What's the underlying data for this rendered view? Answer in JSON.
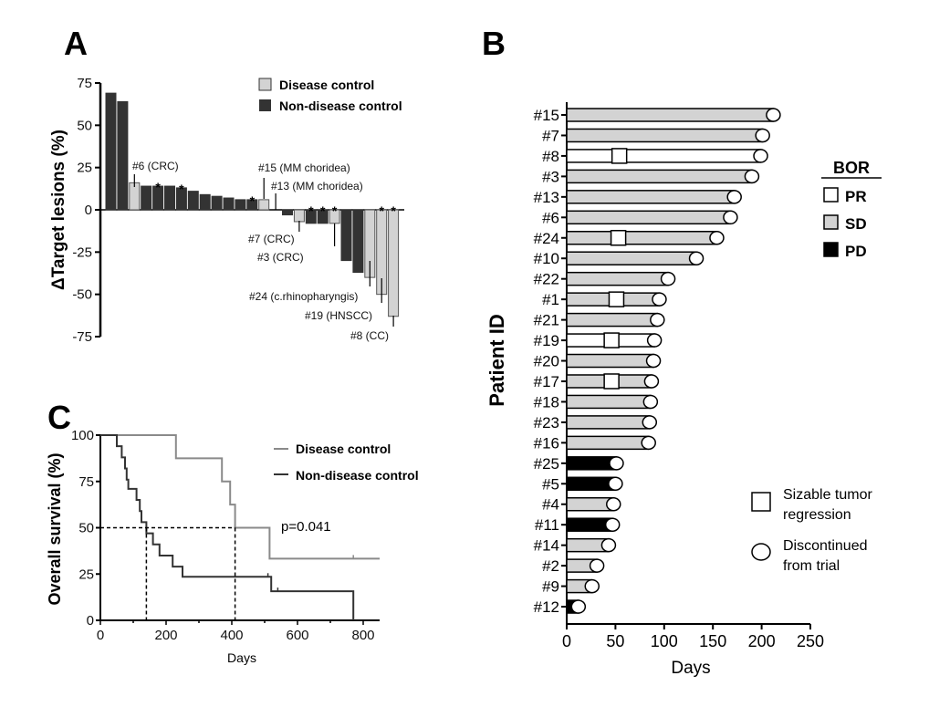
{
  "panel_labels": {
    "a": "A",
    "b": "B",
    "c": "C"
  },
  "colors": {
    "disease_control": "#d3d3d3",
    "non_disease_control": "#333333",
    "pr": "#ffffff",
    "sd": "#d3d3d3",
    "pd": "#000000",
    "km_disease_control": "#8a8a8a",
    "km_non_disease_control": "#333333"
  },
  "chart_data": [
    {
      "type": "bar",
      "panel": "A",
      "ylabel": "ΔTarget lesions (%)",
      "ylim": [
        -75,
        75
      ],
      "yticks": [
        "75",
        "50",
        "25",
        "0",
        "-25",
        "-50",
        "-75"
      ],
      "legend": [
        "Disease control",
        "Non-disease control"
      ],
      "values": [
        69,
        64,
        16,
        14,
        14,
        14,
        13,
        11,
        9,
        8,
        7,
        6,
        6,
        6,
        0,
        -3,
        -7,
        -8,
        -8,
        -8,
        -30,
        -37,
        -40,
        -50,
        -63
      ],
      "groups": [
        "N",
        "N",
        "D",
        "N",
        "N",
        "N",
        "N",
        "N",
        "N",
        "N",
        "N",
        "N",
        "N",
        "D",
        "D",
        "N",
        "D",
        "N",
        "N",
        "D",
        "N",
        "N",
        "D",
        "D",
        "D"
      ],
      "asterisk_bars": [
        4,
        6,
        12,
        17,
        18,
        19,
        23,
        24
      ],
      "asterisk": "*",
      "annotations": [
        {
          "bar": 2,
          "text": "#6 (CRC)"
        },
        {
          "bar": 13,
          "text": "#15 (MM choridea)"
        },
        {
          "bar": 14,
          "text": "#13 (MM choridea)"
        },
        {
          "bar": 16,
          "text": "#7 (CRC)"
        },
        {
          "bar": 19,
          "text": "#3 (CRC)"
        },
        {
          "bar": 22,
          "text": "#24 (c.rhinopharyngis)"
        },
        {
          "bar": 23,
          "text": "#19 (HNSCC)"
        },
        {
          "bar": 24,
          "text": "#8 (CC)"
        }
      ]
    },
    {
      "type": "bar",
      "orientation": "horizontal",
      "panel": "B",
      "xlabel": "Days",
      "ylabel": "Patient ID",
      "xlim": [
        0,
        250
      ],
      "xticks": [
        "0",
        "50",
        "100",
        "150",
        "200",
        "250"
      ],
      "legend_title": "BOR",
      "legend": [
        "PR",
        "SD",
        "PD"
      ],
      "marker_legend": [
        {
          "symbol": "square",
          "lines": [
            "Sizable tumor",
            "regression"
          ]
        },
        {
          "symbol": "circle",
          "lines": [
            "Discontinued",
            "from trial"
          ]
        }
      ],
      "patients": [
        {
          "id": "#15",
          "days": 212,
          "bor": "SD"
        },
        {
          "id": "#7",
          "days": 201,
          "bor": "SD"
        },
        {
          "id": "#8",
          "days": 199,
          "bor": "PR",
          "regression": 54
        },
        {
          "id": "#3",
          "days": 190,
          "bor": "SD"
        },
        {
          "id": "#13",
          "days": 172,
          "bor": "SD"
        },
        {
          "id": "#6",
          "days": 168,
          "bor": "SD"
        },
        {
          "id": "#24",
          "days": 154,
          "bor": "SD",
          "regression": 53
        },
        {
          "id": "#10",
          "days": 133,
          "bor": "SD"
        },
        {
          "id": "#22",
          "days": 104,
          "bor": "SD"
        },
        {
          "id": "#1",
          "days": 95,
          "bor": "SD",
          "regression": 51
        },
        {
          "id": "#21",
          "days": 93,
          "bor": "SD"
        },
        {
          "id": "#19",
          "days": 90,
          "bor": "PR",
          "regression": 46
        },
        {
          "id": "#20",
          "days": 89,
          "bor": "SD"
        },
        {
          "id": "#17",
          "days": 87,
          "bor": "SD",
          "regression": 46
        },
        {
          "id": "#18",
          "days": 86,
          "bor": "SD"
        },
        {
          "id": "#23",
          "days": 85,
          "bor": "SD"
        },
        {
          "id": "#16",
          "days": 84,
          "bor": "SD"
        },
        {
          "id": "#25",
          "days": 51,
          "bor": "PD"
        },
        {
          "id": "#5",
          "days": 50,
          "bor": "PD"
        },
        {
          "id": "#4",
          "days": 48,
          "bor": "SD"
        },
        {
          "id": "#11",
          "days": 47,
          "bor": "PD"
        },
        {
          "id": "#14",
          "days": 43,
          "bor": "SD"
        },
        {
          "id": "#2",
          "days": 31,
          "bor": "SD"
        },
        {
          "id": "#9",
          "days": 26,
          "bor": "SD"
        },
        {
          "id": "#12",
          "days": 12,
          "bor": "PD"
        }
      ]
    },
    {
      "type": "line",
      "subtype": "kaplan-meier",
      "panel": "C",
      "xlabel": "Days",
      "ylabel": "Overall survival (%)",
      "xlim": [
        0,
        850
      ],
      "ylim": [
        0,
        100
      ],
      "xticks": [
        "0",
        "200",
        "400",
        "600",
        "800"
      ],
      "yticks": [
        "100",
        "75",
        "50",
        "25",
        "0"
      ],
      "annotation": "p=0.041",
      "medians": [
        140,
        410
      ],
      "series": [
        {
          "name": "Disease control",
          "steps": [
            [
              0,
              100
            ],
            [
              230,
              87.5
            ],
            [
              370,
              75
            ],
            [
              395,
              62.5
            ],
            [
              410,
              50
            ],
            [
              515,
              33.3
            ],
            [
              850,
              33.3
            ]
          ],
          "censored": [
            [
              410,
              50
            ],
            [
              770,
              33.3
            ]
          ]
        },
        {
          "name": "Non-disease control",
          "steps": [
            [
              0,
              100
            ],
            [
              50,
              94
            ],
            [
              65,
              88
            ],
            [
              75,
              82
            ],
            [
              80,
              76
            ],
            [
              85,
              71
            ],
            [
              110,
              65
            ],
            [
              120,
              59
            ],
            [
              125,
              53
            ],
            [
              140,
              47
            ],
            [
              160,
              41
            ],
            [
              180,
              35
            ],
            [
              220,
              29
            ],
            [
              250,
              23.5
            ],
            [
              520,
              15.7
            ],
            [
              770,
              0
            ]
          ],
          "censored": [
            [
              510,
              23.5
            ],
            [
              540,
              15.7
            ]
          ]
        }
      ]
    }
  ]
}
